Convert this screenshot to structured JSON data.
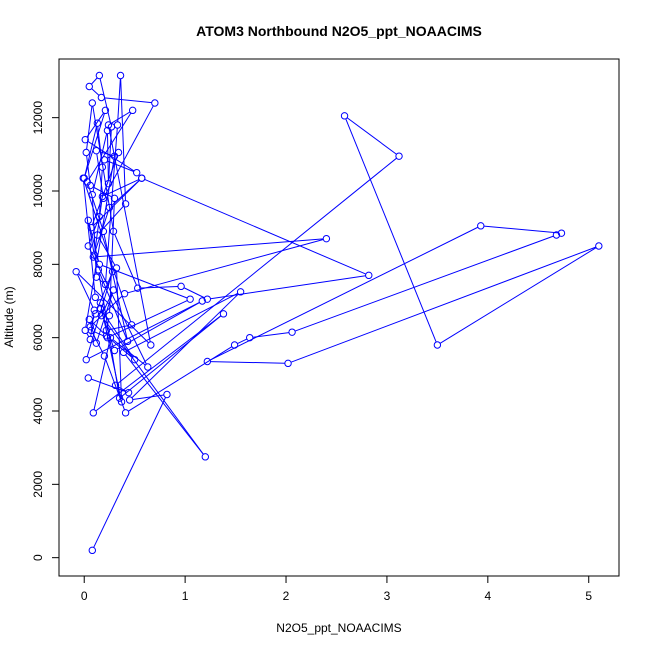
{
  "chart_data": {
    "type": "line",
    "title": "ATOM3 Northbound N2O5_ppt_NOAACIMS",
    "xlabel": "N2O5_ppt_NOAACIMS",
    "ylabel": "Altitude (m)",
    "xlim": [
      -0.25,
      5.3
    ],
    "ylim": [
      -500,
      13600
    ],
    "xticks": [
      0,
      1,
      2,
      3,
      4,
      5
    ],
    "yticks": [
      0,
      2000,
      4000,
      6000,
      8000,
      10000,
      12000
    ],
    "marker": "open-circle",
    "grid": false,
    "colors": {
      "series": "#0000ff",
      "axis": "#000000",
      "background": "#ffffff"
    },
    "series": [
      {
        "x": [
          0.08,
          0.82,
          0.45,
          1.55,
          0.39,
          1.2,
          0.17,
          0.29,
          0.12,
          0.05,
          0.22,
          0.5,
          0.16,
          0.3,
          1.17,
          0.02,
          0.28,
          0.11,
          0.06,
          0.4,
          2.4,
          0.09,
          0.25,
          0.57,
          0.07,
          0.34,
          0.2,
          0.52,
          0.01,
          0.21,
          0.0,
          0.13,
          0.18,
          0.15,
          0.04,
          0.63,
          0.26,
          0.09,
          1.38,
          0.35,
          0.14,
          0.43,
          0.19,
          0.03,
          0.48,
          0.24,
          0.66,
          -0.08,
          0.1,
          0.06,
          0.01,
          0.3,
          0.12,
          0.19,
          0.7,
          0.17,
          0.05,
          0.15,
          0.27,
          0.24,
          0.23,
          0.08,
          0.12,
          0.21,
          0.33,
          0.36,
          0.41,
          0.13,
          0.32,
          0.37,
          0.16,
          0.11,
          -0.01,
          0.47,
          0.22,
          0.25,
          0.3,
          0.06,
          0.02,
          0.08,
          0.29,
          0.53,
          0.96,
          1.22,
          2.82,
          0.57,
          0.18,
          0.1,
          0.04,
          0.15,
          1.05,
          0.23,
          0.07,
          0.2,
          0.41,
          1.49,
          1.64,
          2.06,
          4.68,
          4.73,
          3.93,
          1.22,
          2.02,
          5.1,
          3.5,
          2.58,
          3.12,
          0.31,
          0.44,
          0.04
        ],
        "y": [
          200,
          4450,
          4300,
          7250,
          5600,
          2750,
          6600,
          7300,
          5850,
          6500,
          6050,
          5400,
          6800,
          5650,
          7000,
          5400,
          7800,
          6650,
          6300,
          7200,
          8700,
          8200,
          9550,
          10350,
          9000,
          11050,
          10850,
          10500,
          11400,
          12200,
          10350,
          11850,
          10650,
          9300,
          8500,
          5200,
          6000,
          3950,
          6650,
          4350,
          7850,
          5900,
          8900,
          10250,
          12200,
          11800,
          5800,
          7800,
          6750,
          5950,
          6200,
          10950,
          11100,
          9800,
          12400,
          12550,
          12850,
          13150,
          11750,
          10200,
          11650,
          9900,
          7650,
          7450,
          11800,
          13150,
          9650,
          8800,
          7900,
          4250,
          6950,
          7100,
          10350,
          6350,
          6200,
          6600,
          9800,
          10150,
          11050,
          12400,
          8900,
          7350,
          7400,
          7050,
          7700,
          10350,
          9850,
          8250,
          9200,
          8000,
          7050,
          6000,
          6200,
          5500,
          3950,
          5800,
          6000,
          6150,
          8800,
          8850,
          9050,
          5350,
          5300,
          8500,
          5800,
          12050,
          10950,
          4700,
          4500,
          4900
        ]
      }
    ]
  }
}
